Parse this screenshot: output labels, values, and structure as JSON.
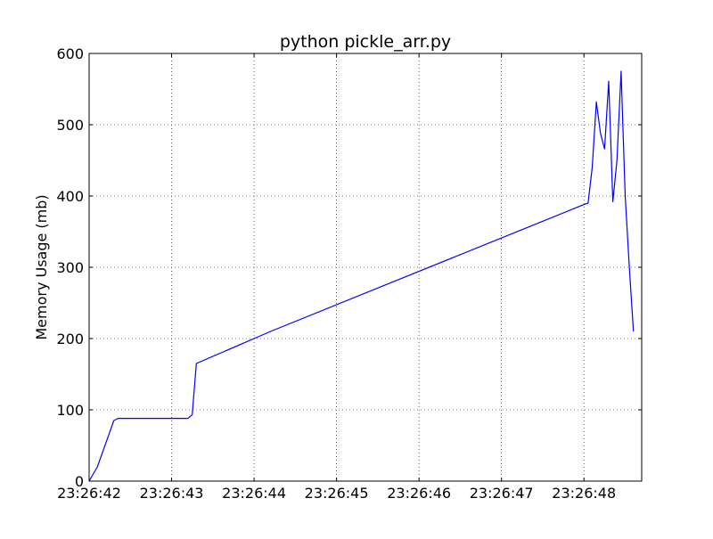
{
  "chart_data": {
    "type": "line",
    "title": "python pickle_arr.py",
    "xlabel": "",
    "ylabel": "Memory Usage (mb)",
    "x_unit": "seconds",
    "xlim": [
      0,
      6.7
    ],
    "ylim": [
      0,
      600
    ],
    "x_ticks": [
      {
        "value": 0,
        "label": "23:26:42"
      },
      {
        "value": 1,
        "label": "23:26:43"
      },
      {
        "value": 2,
        "label": "23:26:44"
      },
      {
        "value": 3,
        "label": "23:26:45"
      },
      {
        "value": 4,
        "label": "23:26:46"
      },
      {
        "value": 5,
        "label": "23:26:47"
      },
      {
        "value": 6,
        "label": "23:26:48"
      }
    ],
    "y_ticks": [
      0,
      100,
      200,
      300,
      400,
      500,
      600
    ],
    "grid": true,
    "grid_style": "dotted",
    "legend": "none",
    "series": [
      {
        "color": "#0000ff",
        "x": [
          0,
          0.1,
          0.3,
          0.35,
          0.4,
          1.0,
          1.15,
          1.2,
          1.25,
          1.3,
          2.0,
          2.2,
          6.0,
          6.05,
          6.1,
          6.15,
          6.2,
          6.25,
          6.3,
          6.35,
          6.4,
          6.45,
          6.5,
          6.55,
          6.6
        ],
        "y": [
          0,
          20,
          85,
          88,
          88,
          88,
          88,
          88,
          93,
          165,
          200,
          210,
          388,
          390,
          440,
          532,
          488,
          466,
          561,
          392,
          450,
          575,
          400,
          300,
          210
        ]
      }
    ]
  }
}
